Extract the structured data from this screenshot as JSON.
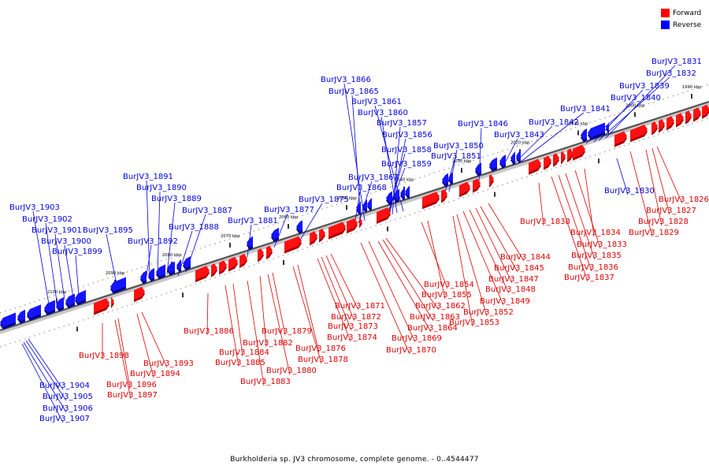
{
  "legend": {
    "forward": {
      "label": "Forward",
      "color": "#ff0000"
    },
    "reverse": {
      "label": "Reverse",
      "color": "#0000ff"
    }
  },
  "caption": "Burkholderia sp. JV3 chromosome, complete genome. - 0..4544477",
  "ticks": [
    "1990 kbp",
    "2000 kbp",
    "2010 kbp",
    "2020 kbp",
    "2030 kbp",
    "2040 kbp",
    "2050 kbp",
    "2060 kbp",
    "2070 kbp",
    "2080 kbp",
    "2090 kbp",
    "2100 kbp"
  ],
  "reverse_genes": [
    "BurJV3_1831",
    "BurJV3_1832",
    "BurJV3_1839",
    "BurJV3_1840",
    "BurJV3_1841",
    "BurJV3_1842",
    "BurJV3_1843",
    "BurJV3_1846",
    "BurJV3_1850",
    "BurJV3_1851",
    "BurJV3_1866",
    "BurJV3_1865",
    "BurJV3_1861",
    "BurJV3_1860",
    "BurJV3_1857",
    "BurJV3_1856",
    "BurJV3_1858",
    "BurJV3_1859",
    "BurJV3_1867",
    "BurJV3_1868",
    "BurJV3_1875",
    "BurJV3_1877",
    "BurJV3_1881",
    "BurJV3_1891",
    "BurJV3_1890",
    "BurJV3_1889",
    "BurJV3_1887",
    "BurJV3_1888",
    "BurJV3_1895",
    "BurJV3_1892",
    "BurJV3_1903",
    "BurJV3_1902",
    "BurJV3_1901",
    "BurJV3_1900",
    "BurJV3_1899",
    "BurJV3_1830",
    "BurJV3_1904",
    "BurJV3_1905",
    "BurJV3_1906",
    "BurJV3_1907"
  ],
  "forward_genes": [
    "BurJV3_1826",
    "BurJV3_1827",
    "BurJV3_1828",
    "BurJV3_1829",
    "BurJV3_1834",
    "BurJV3_1833",
    "BurJV3_1835",
    "BurJV3_1836",
    "BurJV3_1837",
    "BurJV3_1838",
    "BurJV3_1844",
    "BurJV3_1845",
    "BurJV3_1847",
    "BurJV3_1848",
    "BurJV3_1849",
    "BurJV3_1852",
    "BurJV3_1853",
    "BurJV3_1854",
    "BurJV3_1855",
    "BurJV3_1862",
    "BurJV3_1863",
    "BurJV3_1864",
    "BurJV3_1869",
    "BurJV3_1870",
    "BurJV3_1871",
    "BurJV3_1872",
    "BurJV3_1873",
    "BurJV3_1874",
    "BurJV3_1876",
    "BurJV3_1878",
    "BurJV3_1879",
    "BurJV3_1880",
    "BurJV3_1882",
    "BurJV3_1884",
    "BurJV3_1885",
    "BurJV3_1883",
    "BurJV3_1886",
    "BurJV3_1893",
    "BurJV3_1894",
    "BurJV3_1896",
    "BurJV3_1897",
    "BurJV3_1898"
  ]
}
